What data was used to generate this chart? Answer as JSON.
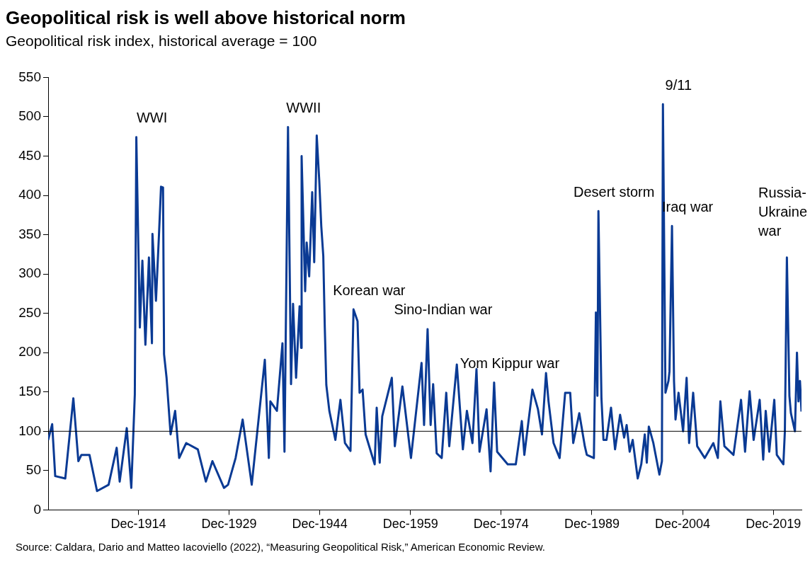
{
  "chart_data": {
    "type": "line",
    "title": "Geopolitical risk is well above historical norm",
    "subtitle": "Geopolitical risk index, historical average = 100",
    "x": [
      "1900-01",
      "1900-09",
      "1901-03",
      "1902-11",
      "1904-03",
      "1905-01",
      "1905-07",
      "1906-11",
      "1908-02",
      "1910-01",
      "1911-05",
      "1911-11",
      "1913-01",
      "1913-10",
      "1914-05",
      "1914-08",
      "1915-03",
      "1915-08",
      "1916-02",
      "1916-09",
      "1917-03",
      "1917-04",
      "1917-11",
      "1918-05",
      "1918-09",
      "1919-01",
      "1919-03",
      "1919-08",
      "1920-04",
      "1921-01",
      "1921-09",
      "1922-11",
      "1924-10",
      "1926-02",
      "1927-03",
      "1929-02",
      "1929-10",
      "1931-01",
      "1932-03",
      "1933-09",
      "1935-11",
      "1936-07",
      "1936-10",
      "1937-11",
      "1938-10",
      "1939-02",
      "1939-09",
      "1940-03",
      "1940-07",
      "1941-01",
      "1941-08",
      "1941-11",
      "1941-12",
      "1942-07",
      "1942-10",
      "1943-03",
      "1943-09",
      "1944-01",
      "1944-06",
      "1944-11",
      "1945-03",
      "1945-07",
      "1945-10",
      "1946-01",
      "1946-07",
      "1947-07",
      "1948-05",
      "1949-02",
      "1950-01",
      "1950-07",
      "1951-03",
      "1951-07",
      "1952-01",
      "1952-07",
      "1954-01",
      "1954-05",
      "1954-11",
      "1955-04",
      "1956-11",
      "1957-05",
      "1958-08",
      "1960-01",
      "1961-10",
      "1962-03",
      "1962-10",
      "1963-04",
      "1963-09",
      "1964-04",
      "1965-02",
      "1965-11",
      "1966-05",
      "1967-08",
      "1968-08",
      "1969-04",
      "1970-03",
      "1970-11",
      "1971-05",
      "1972-07",
      "1973-03",
      "1973-10",
      "1974-04",
      "1976-01",
      "1977-05",
      "1978-05",
      "1978-10",
      "1980-02",
      "1981-01",
      "1981-09",
      "1982-05",
      "1982-10",
      "1983-08",
      "1984-08",
      "1985-07",
      "1986-05",
      "1986-11",
      "1987-11",
      "1988-10",
      "1989-02",
      "1990-04",
      "1990-08",
      "1990-11",
      "1991-01",
      "1991-07",
      "1991-11",
      "1992-05",
      "1993-02",
      "1993-10",
      "1994-08",
      "1995-04",
      "1995-09",
      "1996-03",
      "1996-09",
      "1997-07",
      "1998-02",
      "1998-09",
      "1999-01",
      "1999-05",
      "2000-02",
      "2001-02",
      "2001-07",
      "2001-09",
      "2002-02",
      "2002-08",
      "2002-10",
      "2003-03",
      "2003-07",
      "2003-10",
      "2004-04",
      "2005-01",
      "2005-08",
      "2006-01",
      "2006-09",
      "2007-05",
      "2008-08",
      "2010-01",
      "2010-10",
      "2011-03",
      "2011-11",
      "2013-05",
      "2014-08",
      "2015-04",
      "2016-01",
      "2016-09",
      "2017-09",
      "2018-04",
      "2018-09",
      "2019-04",
      "2020-02",
      "2020-07",
      "2021-08",
      "2021-11",
      "2022-03",
      "2022-08",
      "2022-11",
      "2023-07",
      "2023-11",
      "2024-02",
      "2024-05",
      "2024-08"
    ],
    "series": [
      {
        "color": "#0a3a94",
        "values": [
          89,
          109,
          43,
          40,
          142,
          62,
          70,
          70,
          24,
          32,
          79,
          36,
          104,
          28,
          147,
          474,
          232,
          317,
          210,
          321,
          212,
          351,
          266,
          351,
          411,
          410,
          198,
          168,
          96,
          126,
          66,
          85,
          77,
          36,
          62,
          28,
          32,
          66,
          115,
          32,
          191,
          66,
          138,
          126,
          212,
          74,
          487,
          160,
          262,
          168,
          259,
          206,
          450,
          278,
          340,
          297,
          404,
          315,
          476,
          419,
          361,
          323,
          232,
          159,
          126,
          89,
          140,
          85,
          75,
          255,
          240,
          149,
          153,
          96,
          58,
          130,
          60,
          119,
          168,
          81,
          157,
          66,
          187,
          108,
          230,
          108,
          160,
          72,
          66,
          149,
          81,
          185,
          77,
          126,
          85,
          179,
          74,
          128,
          49,
          162,
          74,
          58,
          58,
          113,
          70,
          153,
          128,
          96,
          174,
          138,
          85,
          66,
          149,
          149,
          85,
          123,
          81,
          70,
          66,
          251,
          145,
          380,
          142,
          89,
          89,
          130,
          77,
          121,
          92,
          108,
          74,
          89,
          40,
          58,
          96,
          60,
          106,
          85,
          45,
          62,
          516,
          149,
          164,
          176,
          361,
          164,
          115,
          149,
          100,
          168,
          85,
          149,
          81,
          66,
          85,
          66,
          138,
          81,
          70,
          140,
          74,
          151,
          89,
          140,
          64,
          126,
          74,
          140,
          70,
          58,
          100,
          321,
          145,
          123,
          100,
          200,
          138,
          164,
          125
        ]
      }
    ],
    "xlim": [
      "1900-01",
      "2024-08"
    ],
    "xticks": [
      {
        "value": "1914-12",
        "label": "Dec-1914"
      },
      {
        "value": "1929-12",
        "label": "Dec-1929"
      },
      {
        "value": "1944-12",
        "label": "Dec-1944"
      },
      {
        "value": "1959-12",
        "label": "Dec-1959"
      },
      {
        "value": "1974-12",
        "label": "Dec-1974"
      },
      {
        "value": "1989-12",
        "label": "Dec-1989"
      },
      {
        "value": "2004-12",
        "label": "Dec-2004"
      },
      {
        "value": "2019-12",
        "label": "Dec-2019"
      }
    ],
    "ylim": [
      0,
      550
    ],
    "yticks": [
      0,
      50,
      100,
      150,
      200,
      250,
      300,
      350,
      400,
      450,
      500,
      550
    ],
    "ref_lines": [
      {
        "axis": "y",
        "value": 100,
        "color": "#000000"
      }
    ],
    "annotations": [
      {
        "text": "WWI",
        "x": "1914-08",
        "y": 474
      },
      {
        "text": "WWII",
        "x": "1939-09",
        "y": 487
      },
      {
        "text": "Korean war",
        "x": "1950-07",
        "y": 255
      },
      {
        "text": "Sino-Indian war",
        "x": "1962-10",
        "y": 230
      },
      {
        "text": "Yom Kippur war",
        "x": "1973-10",
        "y": 162
      },
      {
        "text": "Desert storm",
        "x": "1991-01",
        "y": 380
      },
      {
        "text": "9/11",
        "x": "2001-09",
        "y": 516
      },
      {
        "text": "Iraq war",
        "x": "2003-03",
        "y": 361
      },
      {
        "text": "Russia-\nUkraine\nwar",
        "x": "2022-03",
        "y": 321
      },
      "Source: Caldara, Dario and Matteo Iacoviello (2022), “Measuring Geopolitical Risk,” American Economic Review."
    ]
  }
}
